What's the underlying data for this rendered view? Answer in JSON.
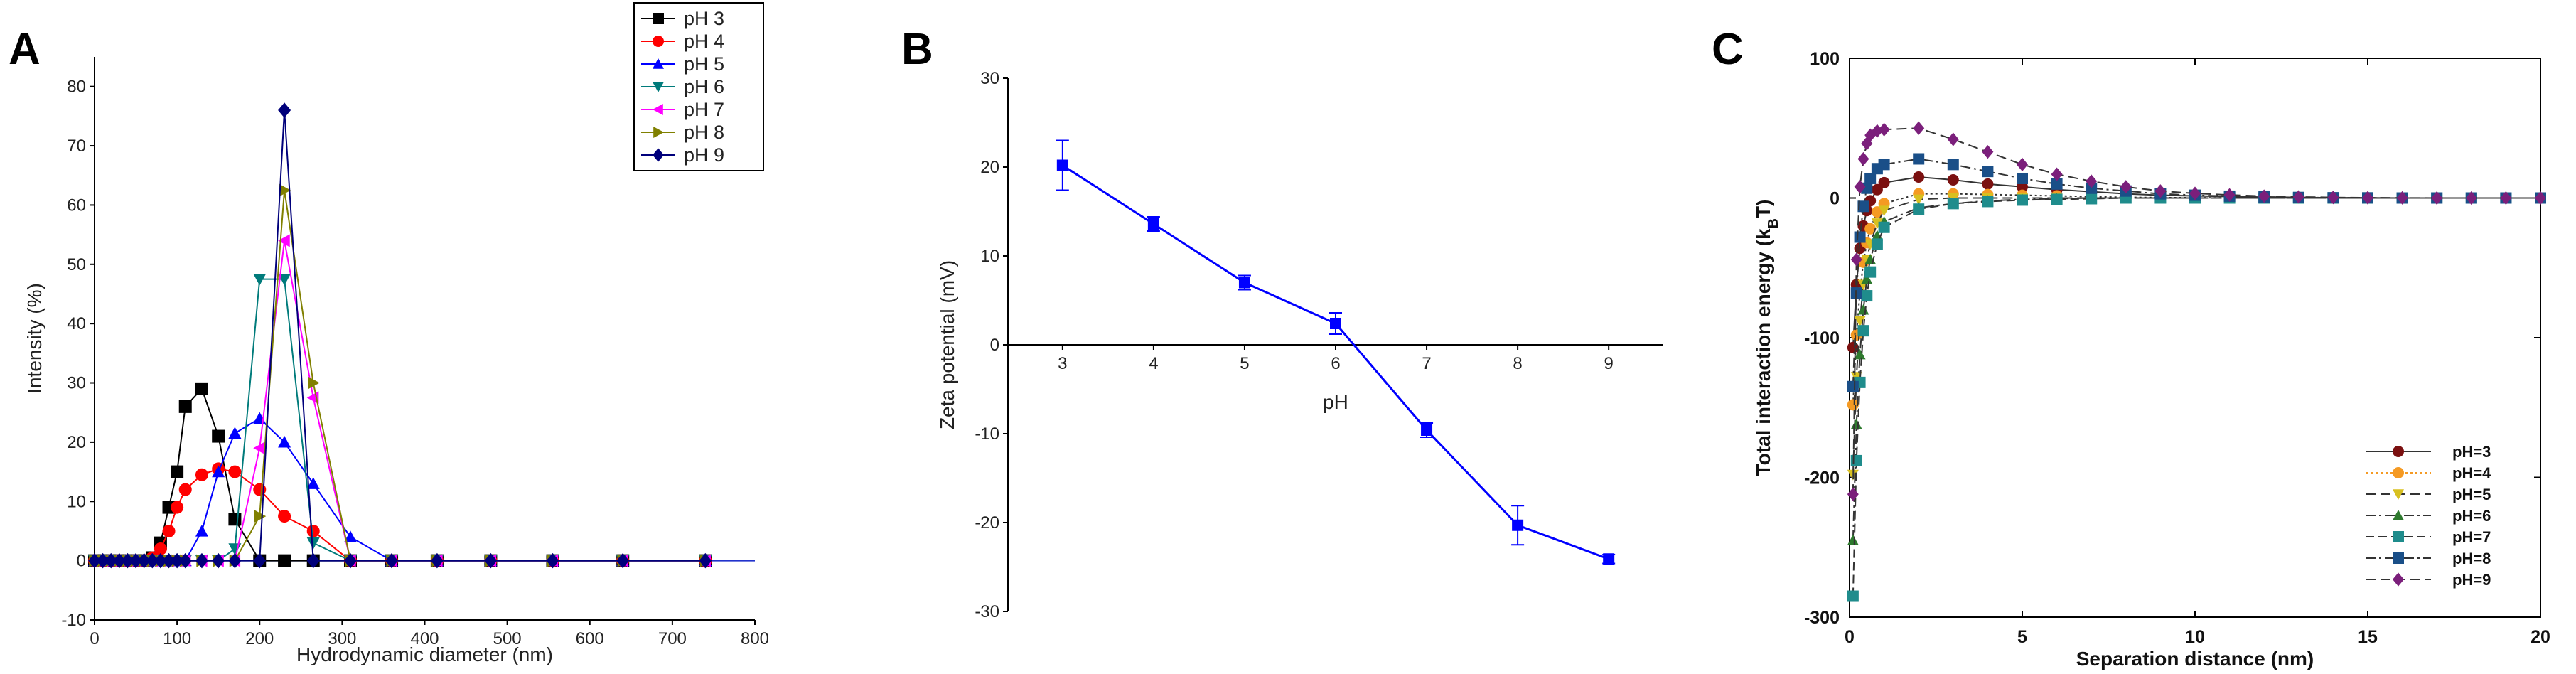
{
  "panels": [
    {
      "letter": "A"
    },
    {
      "letter": "B"
    },
    {
      "letter": "C"
    }
  ],
  "chart_data": [
    {
      "type": "line",
      "panel": "A",
      "xlabel": "Hydrodynamic diameter (nm)",
      "ylabel": "Intensity (%)",
      "xlim": [
        0,
        800
      ],
      "ylim": [
        -10,
        85
      ],
      "xticks": [
        0,
        100,
        200,
        300,
        400,
        500,
        600,
        700,
        800
      ],
      "yticks": [
        -10,
        0,
        10,
        20,
        30,
        40,
        50,
        60,
        70,
        80
      ],
      "grid": false,
      "legend": "top-right, boxed",
      "x": [
        0,
        10,
        20,
        30,
        40,
        50,
        60,
        70,
        80,
        90,
        100,
        110,
        130,
        150,
        170,
        200,
        230,
        265,
        310,
        360,
        415,
        480,
        555,
        640,
        740
      ],
      "series": [
        {
          "name": "pH 3",
          "color": "#000000",
          "marker": "square",
          "values": [
            0,
            0,
            0,
            0,
            0,
            0,
            0,
            0.5,
            3,
            9,
            15,
            26,
            29,
            21,
            7,
            0,
            0,
            0,
            0,
            0,
            0,
            0,
            0,
            0,
            0
          ]
        },
        {
          "name": "pH 4",
          "color": "#ff0000",
          "marker": "circle",
          "values": [
            0,
            0,
            0,
            0,
            0,
            0,
            0,
            0.5,
            2,
            5,
            9,
            12,
            14.5,
            15.5,
            15,
            12,
            7.5,
            5,
            0,
            0,
            0,
            0,
            0,
            0,
            0
          ]
        },
        {
          "name": "pH 5",
          "color": "#0000ff",
          "marker": "triangle-up",
          "values": [
            0,
            0,
            0,
            0,
            0,
            0,
            0,
            0,
            0,
            0,
            0,
            0,
            5,
            15,
            21.5,
            24,
            20,
            13,
            4,
            0,
            0,
            0,
            0,
            0,
            0
          ]
        },
        {
          "name": "pH 6",
          "color": "#007b7b",
          "marker": "triangle-down",
          "values": [
            0,
            0,
            0,
            0,
            0,
            0,
            0,
            0,
            0,
            0,
            0,
            0,
            0,
            0,
            2,
            47.5,
            47.5,
            3,
            0,
            0,
            0,
            0,
            0,
            0,
            0
          ]
        },
        {
          "name": "pH 7",
          "color": "#ff00ff",
          "marker": "triangle-left",
          "values": [
            0,
            0,
            0,
            0,
            0,
            0,
            0,
            0,
            0,
            0,
            0,
            0,
            0,
            0,
            0,
            19,
            54,
            27.5,
            0,
            0,
            0,
            0,
            0,
            0,
            0
          ]
        },
        {
          "name": "pH 8",
          "color": "#808000",
          "marker": "triangle-right",
          "values": [
            0,
            0,
            0,
            0,
            0,
            0,
            0,
            0,
            0,
            0,
            0,
            0,
            0,
            0,
            0,
            7.5,
            62.5,
            30,
            0,
            0,
            0,
            0,
            0,
            0,
            0
          ]
        },
        {
          "name": "pH 9",
          "color": "#00007b",
          "marker": "diamond",
          "values": [
            0,
            0,
            0,
            0,
            0,
            0,
            0,
            0,
            0,
            0,
            0,
            0,
            0,
            0,
            0,
            0,
            76,
            0,
            0,
            0,
            0,
            0,
            0,
            0,
            0
          ]
        }
      ]
    },
    {
      "type": "line",
      "panel": "B",
      "xlabel": "pH",
      "ylabel": "Zeta potential (mV)",
      "xlim": [
        2.4,
        9.6
      ],
      "ylim": [
        -30,
        30
      ],
      "xticks": [
        3,
        4,
        5,
        6,
        7,
        8,
        9
      ],
      "yticks": [
        -30,
        -20,
        -10,
        0,
        10,
        20,
        30
      ],
      "grid": false,
      "series": [
        {
          "color": "#0000ff",
          "marker": "square",
          "x": [
            3,
            4,
            5,
            6,
            7,
            8,
            9
          ],
          "values": [
            20.2,
            13.6,
            7.0,
            2.4,
            -9.6,
            -20.3,
            -24.1
          ],
          "error": [
            2.8,
            0.8,
            0.8,
            1.2,
            0.8,
            2.2,
            0.5
          ]
        }
      ]
    },
    {
      "type": "line",
      "panel": "C",
      "xlabel": "Separation  distance  (nm)",
      "ylabel": "Total  interaction  energy  (k",
      "ylabel_sub": "B",
      "ylabel_end": "T)",
      "xlim": [
        0,
        20
      ],
      "ylim": [
        -300,
        100
      ],
      "xticks": [
        0,
        5,
        10,
        15,
        20
      ],
      "yticks": [
        -300,
        -200,
        -100,
        0,
        100
      ],
      "grid": false,
      "legend": "bottom-right",
      "x": [
        0.1,
        0.2,
        0.3,
        0.4,
        0.5,
        0.6,
        0.8,
        1,
        2,
        3,
        4,
        5,
        6,
        7,
        8,
        9,
        10,
        11,
        12,
        13,
        14,
        15,
        16,
        17,
        18,
        19,
        20
      ],
      "series": [
        {
          "name": "pH=3",
          "color": "#7b1010",
          "marker": "circle",
          "dash": "none",
          "values": [
            -107,
            -62,
            -36,
            -20,
            -9,
            -2,
            6,
            11,
            15,
            13,
            10,
            8,
            6,
            4.5,
            3,
            2,
            1.5,
            1,
            0.6,
            0.4,
            0.2,
            0.1,
            0,
            0,
            0,
            0,
            0
          ]
        },
        {
          "name": "pH=4",
          "color": "#f59a23",
          "marker": "circle",
          "dash": "3,4",
          "values": [
            -148,
            -98,
            -68,
            -46,
            -32,
            -22,
            -10,
            -4,
            3,
            3,
            2.5,
            2,
            1.5,
            1,
            0.5,
            0.3,
            0.2,
            0.1,
            0,
            0,
            0,
            0,
            0,
            0,
            0,
            0,
            0
          ]
        },
        {
          "name": "pH=5",
          "color": "#d8c020",
          "marker": "triangle-down",
          "dash": "14,7",
          "values": [
            -198,
            -128,
            -88,
            -62,
            -44,
            -33,
            -18,
            -9,
            -1,
            0,
            0,
            0,
            0,
            0,
            0,
            0,
            0,
            0,
            0,
            0,
            0,
            0,
            0,
            0,
            0,
            0,
            0
          ]
        },
        {
          "name": "pH=6",
          "color": "#2e7a2e",
          "marker": "triangle-up",
          "dash": "14,5,3,5",
          "values": [
            -245,
            -162,
            -112,
            -80,
            -58,
            -44,
            -27,
            -17,
            -7,
            -4,
            -2,
            -1,
            -0.5,
            0,
            0,
            0,
            0,
            0,
            0,
            0,
            0,
            0,
            0,
            0,
            0,
            0,
            0
          ]
        },
        {
          "name": "pH=7",
          "color": "#1f8c8c",
          "marker": "square",
          "dash": "12,6",
          "values": [
            -285,
            -188,
            -132,
            -95,
            -70,
            -53,
            -33,
            -21,
            -8,
            -4,
            -2.5,
            -1.5,
            -1,
            -0.5,
            0,
            0,
            0,
            0,
            0,
            0,
            0,
            0,
            0,
            0,
            0,
            0,
            0
          ]
        },
        {
          "name": "pH=8",
          "color": "#1a4f88",
          "marker": "square",
          "dash": "14,5,3,5",
          "values": [
            -135,
            -68,
            -28,
            -6,
            7,
            14,
            21,
            24,
            28,
            24,
            19,
            14,
            10,
            7,
            5,
            3,
            2,
            1.3,
            0.8,
            0.4,
            0.2,
            0.1,
            0,
            0,
            0,
            0,
            0
          ]
        },
        {
          "name": "pH=9",
          "color": "#7b1f7b",
          "marker": "diamond",
          "dash": "14,7",
          "values": [
            -212,
            -44,
            8,
            28,
            39,
            45,
            48,
            49,
            50,
            42,
            33,
            24,
            17,
            12,
            8,
            5,
            3.3,
            2.2,
            1.3,
            0.8,
            0.4,
            0.2,
            0.1,
            0,
            0,
            0,
            0
          ]
        }
      ]
    }
  ]
}
